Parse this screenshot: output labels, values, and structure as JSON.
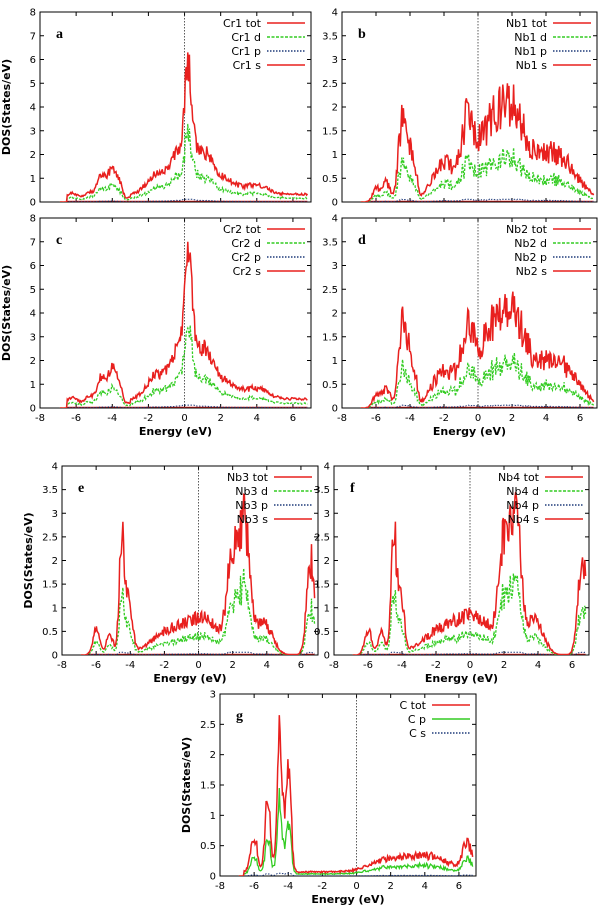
{
  "figure": {
    "colors": {
      "tot": "#e8201e",
      "d": "#33cc22",
      "p": "#1f3b7a",
      "s": "#e8201e",
      "fermi": "#333333",
      "axis": "#000000"
    }
  },
  "chart_data": [
    {
      "id": "a",
      "letter": "a",
      "type": "line",
      "xlim": [
        -8,
        7
      ],
      "ylim": [
        0,
        8
      ],
      "xticks": [
        -8,
        -6,
        -4,
        -2,
        0,
        2,
        4,
        6
      ],
      "yticks": [
        0,
        1,
        2,
        3,
        4,
        5,
        6,
        7,
        8
      ],
      "show_xticklabels": false,
      "xlabel": "",
      "ylabel": "DOS(States/eV)",
      "legend": [
        "Cr1 tot",
        "Cr1 d",
        "Cr1 p",
        "Cr1 s"
      ],
      "profile": "cr",
      "peak": 6.3,
      "fermi_line": true
    },
    {
      "id": "b",
      "letter": "b",
      "type": "line",
      "xlim": [
        -8,
        7
      ],
      "ylim": [
        0,
        4
      ],
      "xticks": [
        -8,
        -6,
        -4,
        -2,
        0,
        2,
        4,
        6
      ],
      "yticks": [
        0,
        0.5,
        1,
        1.5,
        2,
        2.5,
        3,
        3.5,
        4
      ],
      "show_xticklabels": false,
      "xlabel": "",
      "ylabel": "",
      "legend": [
        "Nb1 tot",
        "Nb1 d",
        "Nb1 p",
        "Nb1 s"
      ],
      "profile": "nb12",
      "peak": 2.5,
      "fermi_line": true
    },
    {
      "id": "c",
      "letter": "c",
      "type": "line",
      "xlim": [
        -8,
        7
      ],
      "ylim": [
        0,
        8
      ],
      "xticks": [
        -8,
        -6,
        -4,
        -2,
        0,
        2,
        4,
        6
      ],
      "yticks": [
        0,
        1,
        2,
        3,
        4,
        5,
        6,
        7,
        8
      ],
      "show_xticklabels": true,
      "xlabel": "Energy (eV)",
      "ylabel": "DOS(States/eV)",
      "legend": [
        "Cr2 tot",
        "Cr2 d",
        "Cr2 p",
        "Cr2 s"
      ],
      "profile": "cr",
      "peak": 7.0,
      "fermi_line": true
    },
    {
      "id": "d",
      "letter": "d",
      "type": "line",
      "xlim": [
        -8,
        7
      ],
      "ylim": [
        0,
        4
      ],
      "xticks": [
        -8,
        -6,
        -4,
        -2,
        0,
        2,
        4,
        6
      ],
      "yticks": [
        0,
        0.5,
        1,
        1.5,
        2,
        2.5,
        3,
        3.5,
        4
      ],
      "show_xticklabels": true,
      "xlabel": "Energy (eV)",
      "ylabel": "",
      "legend": [
        "Nb2 tot",
        "Nb2 d",
        "Nb2 p",
        "Nb2 s"
      ],
      "profile": "nb12",
      "peak": 2.45,
      "fermi_line": true
    },
    {
      "id": "e",
      "letter": "e",
      "type": "line",
      "xlim": [
        -8,
        7
      ],
      "ylim": [
        0,
        4
      ],
      "xticks": [
        -8,
        -6,
        -4,
        -2,
        0,
        2,
        4,
        6
      ],
      "yticks": [
        0,
        0.5,
        1,
        1.5,
        2,
        2.5,
        3,
        3.5,
        4
      ],
      "show_xticklabels": true,
      "xlabel": "Energy (eV)",
      "ylabel": "DOS(States/eV)",
      "legend": [
        "Nb3 tot",
        "Nb3 d",
        "Nb3 p",
        "Nb3 s"
      ],
      "profile": "nb34",
      "peak": 3.4,
      "fermi_line": true
    },
    {
      "id": "f",
      "letter": "f",
      "type": "line",
      "xlim": [
        -8,
        7
      ],
      "ylim": [
        0,
        4
      ],
      "xticks": [
        -8,
        -6,
        -4,
        -2,
        0,
        2,
        4,
        6
      ],
      "yticks": [
        0,
        0.5,
        1,
        1.5,
        2,
        2.5,
        3,
        3.5,
        4
      ],
      "show_xticklabels": true,
      "xlabel": "Energy (eV)",
      "ylabel": "",
      "legend": [
        "Nb4 tot",
        "Nb4 d",
        "Nb4 p",
        "Nb4 s"
      ],
      "profile": "nb34",
      "peak": 3.45,
      "fermi_line": true
    },
    {
      "id": "g",
      "letter": "g",
      "type": "line",
      "xlim": [
        -8,
        7
      ],
      "ylim": [
        0,
        3
      ],
      "xticks": [
        -8,
        -6,
        -4,
        -2,
        0,
        2,
        4,
        6
      ],
      "yticks": [
        0,
        0.5,
        1,
        1.5,
        2,
        2.5,
        3
      ],
      "show_xticklabels": true,
      "xlabel": "Energy (eV)",
      "ylabel": "DOS(States/eV)",
      "legend": [
        "C tot",
        "C p",
        "C s"
      ],
      "profile": "c",
      "peak": 2.65,
      "fermi_line": true
    }
  ]
}
